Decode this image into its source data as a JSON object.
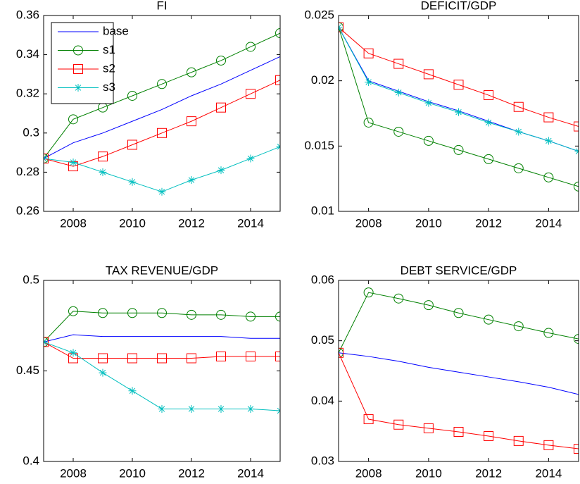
{
  "chart_data": [
    {
      "type": "line",
      "title": "FI",
      "x": [
        2007,
        2008,
        2009,
        2010,
        2011,
        2012,
        2013,
        2014,
        2015
      ],
      "xlim": [
        2007,
        2015
      ],
      "xticks": [
        2008,
        2010,
        2012,
        2014
      ],
      "ylim": [
        0.26,
        0.36
      ],
      "yticks": [
        0.26,
        0.28,
        0.3,
        0.32,
        0.34,
        0.36
      ],
      "legend": "upper left",
      "series": [
        {
          "name": "base",
          "color": "#0000ff",
          "marker": "none",
          "values": [
            0.287,
            0.295,
            0.3,
            0.306,
            0.312,
            0.319,
            0.325,
            0.332,
            0.339
          ]
        },
        {
          "name": "s1",
          "color": "#008000",
          "marker": "circle",
          "values": [
            0.287,
            0.307,
            0.313,
            0.319,
            0.325,
            0.331,
            0.337,
            0.344,
            0.351
          ]
        },
        {
          "name": "s2",
          "color": "#ff0000",
          "marker": "square",
          "values": [
            0.287,
            0.283,
            0.288,
            0.294,
            0.3,
            0.306,
            0.313,
            0.32,
            0.327
          ]
        },
        {
          "name": "s3",
          "color": "#00bfbf",
          "marker": "star",
          "values": [
            0.287,
            0.285,
            0.28,
            0.275,
            0.27,
            0.276,
            0.281,
            0.287,
            0.293
          ]
        }
      ]
    },
    {
      "type": "line",
      "title": "DEFICIT/GDP",
      "x": [
        2007,
        2008,
        2009,
        2010,
        2011,
        2012,
        2013,
        2014,
        2015
      ],
      "xlim": [
        2007,
        2015
      ],
      "xticks": [
        2008,
        2010,
        2012,
        2014
      ],
      "ylim": [
        0.01,
        0.025
      ],
      "yticks": [
        0.01,
        0.015,
        0.02,
        0.025
      ],
      "series": [
        {
          "color": "#0000ff",
          "marker": "none",
          "values": [
            0.0241,
            0.02,
            0.0192,
            0.0184,
            0.0177,
            0.0169,
            0.0161,
            0.0154,
            0.0146
          ]
        },
        {
          "color": "#008000",
          "marker": "circle",
          "values": [
            0.0241,
            0.0168,
            0.0161,
            0.0154,
            0.0147,
            0.014,
            0.0133,
            0.0126,
            0.0119
          ]
        },
        {
          "color": "#ff0000",
          "marker": "square",
          "values": [
            0.0241,
            0.0221,
            0.0213,
            0.0205,
            0.0197,
            0.0189,
            0.018,
            0.0172,
            0.0165
          ]
        },
        {
          "color": "#00bfbf",
          "marker": "star",
          "values": [
            0.0241,
            0.0199,
            0.0191,
            0.0183,
            0.0176,
            0.0168,
            0.0161,
            0.0154,
            0.0146
          ]
        }
      ]
    },
    {
      "type": "line",
      "title": "TAX REVENUE/GDP",
      "x": [
        2007,
        2008,
        2009,
        2010,
        2011,
        2012,
        2013,
        2014,
        2015
      ],
      "xlim": [
        2007,
        2015
      ],
      "xticks": [
        2008,
        2010,
        2012,
        2014
      ],
      "ylim": [
        0.4,
        0.5
      ],
      "yticks": [
        0.4,
        0.45,
        0.5
      ],
      "series": [
        {
          "color": "#0000ff",
          "marker": "none",
          "values": [
            0.466,
            0.47,
            0.469,
            0.469,
            0.469,
            0.469,
            0.469,
            0.468,
            0.468
          ]
        },
        {
          "color": "#008000",
          "marker": "circle",
          "values": [
            0.466,
            0.483,
            0.482,
            0.482,
            0.482,
            0.481,
            0.481,
            0.48,
            0.48
          ]
        },
        {
          "color": "#ff0000",
          "marker": "square",
          "values": [
            0.466,
            0.457,
            0.457,
            0.457,
            0.457,
            0.457,
            0.458,
            0.458,
            0.458
          ]
        },
        {
          "color": "#00bfbf",
          "marker": "star",
          "values": [
            0.466,
            0.46,
            0.449,
            0.439,
            0.429,
            0.429,
            0.429,
            0.429,
            0.428
          ]
        }
      ]
    },
    {
      "type": "line",
      "title": "DEBT SERVICE/GDP",
      "x": [
        2007,
        2008,
        2009,
        2010,
        2011,
        2012,
        2013,
        2014,
        2015
      ],
      "xlim": [
        2007,
        2015
      ],
      "xticks": [
        2008,
        2010,
        2012,
        2014
      ],
      "ylim": [
        0.03,
        0.06
      ],
      "yticks": [
        0.03,
        0.04,
        0.05,
        0.06
      ],
      "series": [
        {
          "color": "#0000ff",
          "marker": "none",
          "values": [
            0.048,
            0.0474,
            0.0466,
            0.0456,
            0.0448,
            0.044,
            0.0432,
            0.0423,
            0.0411
          ]
        },
        {
          "color": "#008000",
          "marker": "circle",
          "values": [
            0.048,
            0.058,
            0.057,
            0.0559,
            0.0546,
            0.0535,
            0.0524,
            0.0513,
            0.0503
          ]
        },
        {
          "color": "#ff0000",
          "marker": "square",
          "values": [
            0.048,
            0.037,
            0.0361,
            0.0355,
            0.0349,
            0.0342,
            0.0334,
            0.0327,
            0.0321
          ]
        }
      ]
    }
  ]
}
